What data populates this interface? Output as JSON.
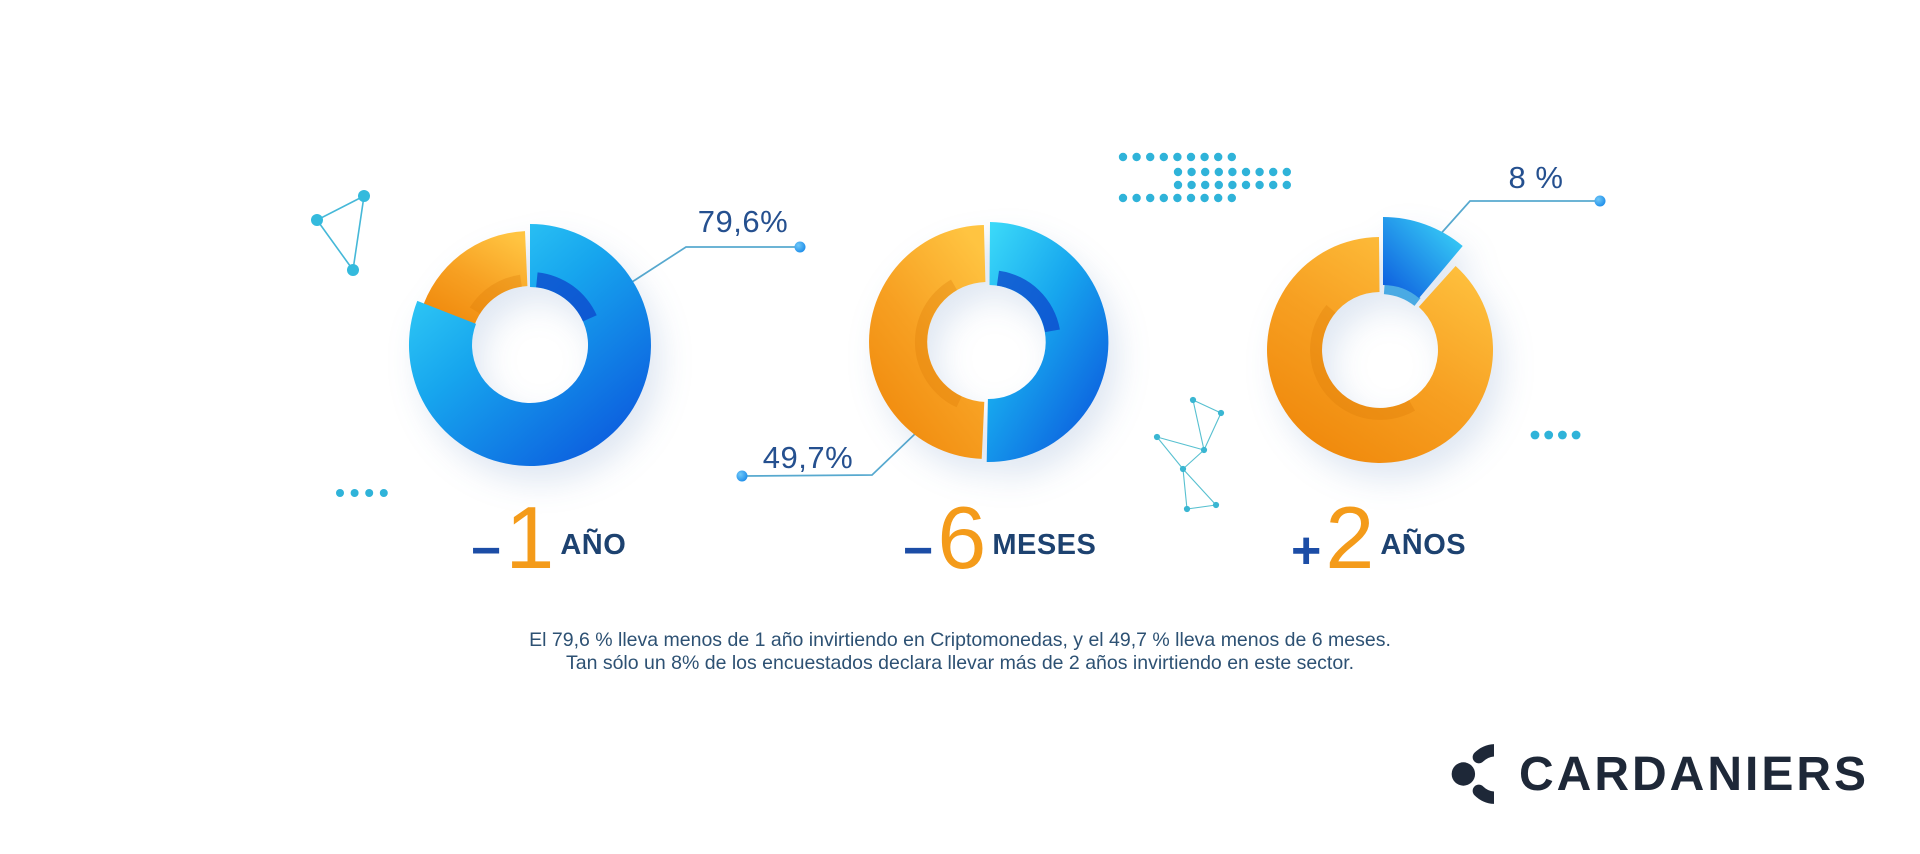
{
  "chart_data": {
    "type": "pie",
    "subtype": "donut-infographic",
    "donuts": [
      {
        "name": "menos de 1 año",
        "callout_label": "79,6%",
        "label": {
          "sign": "−",
          "number": "1",
          "unit": "AÑO"
        },
        "segments": [
          {
            "name": "highlighted-blue",
            "value": 79.6
          },
          {
            "name": "orange",
            "value": 20.4
          }
        ]
      },
      {
        "name": "menos de 6 meses",
        "callout_label": "49,7%",
        "label": {
          "sign": "−",
          "number": "6",
          "unit": "MESES"
        },
        "segments": [
          {
            "name": "blue",
            "value": 50.3
          },
          {
            "name": "highlighted-orange",
            "value": 49.7
          }
        ]
      },
      {
        "name": "más de 2 años",
        "callout_label": "8 %",
        "label": {
          "sign": "+",
          "number": "2",
          "unit": "AÑOS"
        },
        "segments": [
          {
            "name": "highlighted-blue",
            "value": 8,
            "exploded": true
          },
          {
            "name": "orange",
            "value": 92
          }
        ]
      }
    ],
    "legend_position": "none",
    "colors": {
      "blue_light": "#3ddcf9",
      "blue_mid": "#17a6ee",
      "blue_deep": "#0b57dd",
      "orange_light": "#ffc441",
      "orange_mid": "#f7a022",
      "orange_deep": "#ef8609",
      "navy_text": "#25508f",
      "teal_decoration": "#2fb3d9"
    }
  },
  "caption": {
    "line1": "El 79,6 % lleva menos de 1 año invirtiendo en Criptomonedas, y el 49,7 % lleva menos de 6 meses.",
    "line2": "Tan sólo un 8% de los encuestados declara llevar más de 2 años invirtiendo en este sector."
  },
  "brand": {
    "name": "CARDANIERS"
  }
}
